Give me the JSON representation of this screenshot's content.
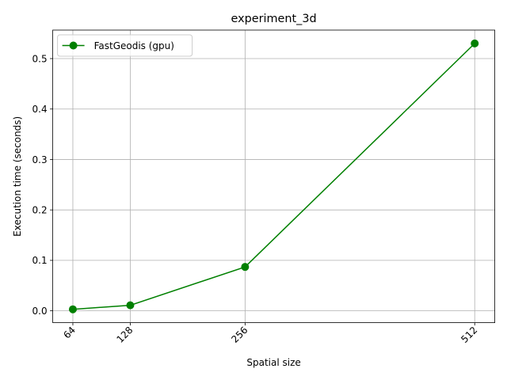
{
  "chart_data": {
    "type": "line",
    "title": "experiment_3d",
    "xlabel": "Spatial size",
    "ylabel": "Execution time (seconds)",
    "x": [
      64,
      128,
      256,
      512
    ],
    "xticks": [
      "64",
      "128",
      "256",
      "512"
    ],
    "yticks": [
      0.0,
      0.1,
      0.2,
      0.3,
      0.4,
      0.5
    ],
    "ytick_labels": [
      "0.0",
      "0.1",
      "0.2",
      "0.3",
      "0.4",
      "0.5"
    ],
    "xlim": [
      41.6,
      534.4
    ],
    "ylim": [
      -0.0235,
      0.5565
    ],
    "grid": true,
    "legend_position": "upper left",
    "series": [
      {
        "name": "FastGeodis (gpu)",
        "values": [
          0.003,
          0.011,
          0.087,
          0.53
        ],
        "color": "#008000",
        "marker": "circle"
      }
    ]
  }
}
